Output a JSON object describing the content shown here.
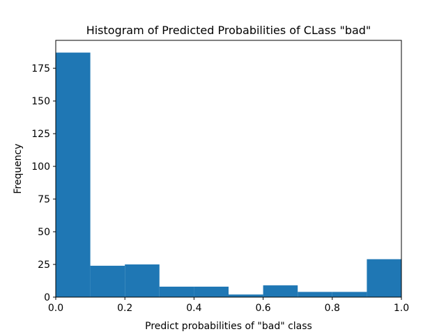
{
  "chart_data": {
    "type": "bar",
    "title": "Histogram of Predicted Probabilities of CLass \"bad\"",
    "xlabel": "Predict probabilities of \"bad\" class",
    "ylabel": "Frequency",
    "bin_edges": [
      0.0,
      0.1,
      0.2,
      0.3,
      0.4,
      0.5,
      0.6,
      0.7,
      0.8,
      0.9,
      1.0
    ],
    "values": [
      187,
      24,
      25,
      8,
      8,
      2,
      9,
      4,
      4,
      29
    ],
    "xlim": [
      0.0,
      1.0
    ],
    "ylim": [
      0,
      196.35
    ],
    "xticks": [
      "0.0",
      "0.2",
      "0.4",
      "0.6",
      "0.8",
      "1.0"
    ],
    "xtick_values": [
      0.0,
      0.2,
      0.4,
      0.6,
      0.8,
      1.0
    ],
    "yticks": [
      "0",
      "25",
      "50",
      "75",
      "100",
      "125",
      "150",
      "175"
    ],
    "ytick_values": [
      0,
      25,
      50,
      75,
      100,
      125,
      150,
      175
    ],
    "grid": false,
    "bar_color": "#1f77b4"
  }
}
